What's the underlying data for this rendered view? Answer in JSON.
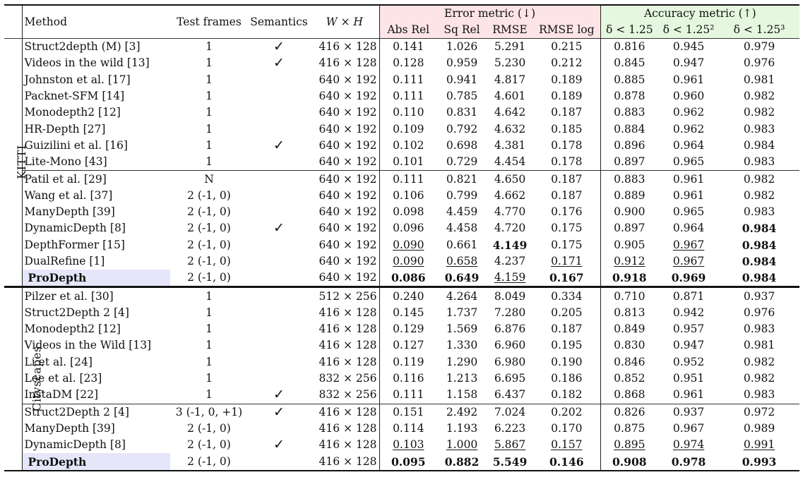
{
  "header": {
    "method": "Method",
    "test_frames": "Test frames",
    "semantics": "Semantics",
    "wh": "W × H",
    "error_group": "Error metric (↓)",
    "accuracy_group": "Accuracy metric (↑)",
    "metrics": [
      "Abs Rel",
      "Sq Rel",
      "RMSE",
      "RMSE log",
      "δ < 1.25",
      "δ < 1.25²",
      "δ < 1.25³"
    ]
  },
  "kitti_label": "KITTI",
  "cityscapes_label": "Cityscapes",
  "check": "✓",
  "kitti": [
    {
      "method": "Struct2depth (M) [3]",
      "frames": "1",
      "sem": true,
      "res": "416 × 128",
      "vals": [
        "0.141",
        "1.026",
        "5.291",
        "0.215",
        "0.816",
        "0.945",
        "0.979"
      ],
      "style": [
        "",
        "",
        "",
        "",
        "",
        "",
        ""
      ]
    },
    {
      "method": "Videos in the wild [13]",
      "frames": "1",
      "sem": true,
      "res": "416 × 128",
      "vals": [
        "0.128",
        "0.959",
        "5.230",
        "0.212",
        "0.845",
        "0.947",
        "0.976"
      ],
      "style": [
        "",
        "",
        "",
        "",
        "",
        "",
        ""
      ]
    },
    {
      "method": "Johnston et al. [17]",
      "frames": "1",
      "sem": false,
      "res": "640 × 192",
      "vals": [
        "0.111",
        "0.941",
        "4.817",
        "0.189",
        "0.885",
        "0.961",
        "0.981"
      ],
      "style": [
        "",
        "",
        "",
        "",
        "",
        "",
        ""
      ]
    },
    {
      "method": "Packnet-SFM [14]",
      "frames": "1",
      "sem": false,
      "res": "640 × 192",
      "vals": [
        "0.111",
        "0.785",
        "4.601",
        "0.189",
        "0.878",
        "0.960",
        "0.982"
      ],
      "style": [
        "",
        "",
        "",
        "",
        "",
        "",
        ""
      ]
    },
    {
      "method": "Monodepth2 [12]",
      "frames": "1",
      "sem": false,
      "res": "640 × 192",
      "vals": [
        "0.110",
        "0.831",
        "4.642",
        "0.187",
        "0.883",
        "0.962",
        "0.982"
      ],
      "style": [
        "",
        "",
        "",
        "",
        "",
        "",
        ""
      ]
    },
    {
      "method": "HR-Depth [27]",
      "frames": "1",
      "sem": false,
      "res": "640 × 192",
      "vals": [
        "0.109",
        "0.792",
        "4.632",
        "0.185",
        "0.884",
        "0.962",
        "0.983"
      ],
      "style": [
        "",
        "",
        "",
        "",
        "",
        "",
        ""
      ]
    },
    {
      "method": "Guizilini et al. [16]",
      "frames": "1",
      "sem": true,
      "res": "640 × 192",
      "vals": [
        "0.102",
        "0.698",
        "4.381",
        "0.178",
        "0.896",
        "0.964",
        "0.984"
      ],
      "style": [
        "",
        "",
        "",
        "",
        "",
        "",
        ""
      ]
    },
    {
      "method": "Lite-Mono [43]",
      "frames": "1",
      "sem": false,
      "res": "640 × 192",
      "vals": [
        "0.101",
        "0.729",
        "4.454",
        "0.178",
        "0.897",
        "0.965",
        "0.983"
      ],
      "style": [
        "",
        "",
        "",
        "",
        "",
        "",
        ""
      ]
    },
    {
      "method": "Patil et al. [29]",
      "frames": "N",
      "sem": false,
      "res": "640 × 192",
      "vals": [
        "0.111",
        "0.821",
        "4.650",
        "0.187",
        "0.883",
        "0.961",
        "0.982"
      ],
      "style": [
        "",
        "",
        "",
        "",
        "",
        "",
        ""
      ],
      "rule": "thin"
    },
    {
      "method": "Wang et al. [37]",
      "frames": "2 (-1, 0)",
      "sem": false,
      "res": "640 × 192",
      "vals": [
        "0.106",
        "0.799",
        "4.662",
        "0.187",
        "0.889",
        "0.961",
        "0.982"
      ],
      "style": [
        "",
        "",
        "",
        "",
        "",
        "",
        ""
      ]
    },
    {
      "method": "ManyDepth [39]",
      "frames": "2 (-1, 0)",
      "sem": false,
      "res": "640 × 192",
      "vals": [
        "0.098",
        "4.459",
        "4.770",
        "0.176",
        "0.900",
        "0.965",
        "0.983"
      ],
      "style": [
        "",
        "",
        "",
        "",
        "",
        "",
        ""
      ]
    },
    {
      "method": "DynamicDepth [8]",
      "frames": "2 (-1, 0)",
      "sem": true,
      "res": "640 × 192",
      "vals": [
        "0.096",
        "4.458",
        "4.720",
        "0.175",
        "0.897",
        "0.964",
        "0.984"
      ],
      "style": [
        "",
        "",
        "",
        "",
        "",
        "",
        "b"
      ]
    },
    {
      "method": "DepthFormer [15]",
      "frames": "2 (-1, 0)",
      "sem": false,
      "res": "640 × 192",
      "vals": [
        "0.090",
        "0.661",
        "4.149",
        "0.175",
        "0.905",
        "0.967",
        "0.984"
      ],
      "style": [
        "u",
        "",
        "b",
        "",
        "",
        "u",
        "b"
      ]
    },
    {
      "method": "DualRefine [1]",
      "frames": "2 (-1, 0)",
      "sem": false,
      "res": "640 × 192",
      "vals": [
        "0.090",
        "0.658",
        "4.237",
        "0.171",
        "0.912",
        "0.967",
        "0.984"
      ],
      "style": [
        "u",
        "u",
        "",
        "u",
        "u",
        "u",
        "b"
      ]
    },
    {
      "method": "ProDepth",
      "frames": "2 (-1, 0)",
      "sem": false,
      "res": "640 × 192",
      "vals": [
        "0.086",
        "0.649",
        "4.159",
        "0.167",
        "0.918",
        "0.969",
        "0.984"
      ],
      "style": [
        "b",
        "b",
        "u",
        "b",
        "b",
        "b",
        "b"
      ],
      "ours": true
    }
  ],
  "cityscapes": [
    {
      "method": "Pilzer et al. [30]",
      "frames": "1",
      "sem": false,
      "res": "512 × 256",
      "vals": [
        "0.240",
        "4.264",
        "8.049",
        "0.334",
        "0.710",
        "0.871",
        "0.937"
      ],
      "style": [
        "",
        "",
        "",
        "",
        "",
        "",
        ""
      ]
    },
    {
      "method": "Struct2Depth 2 [4]",
      "frames": "1",
      "sem": false,
      "res": "416 × 128",
      "vals": [
        "0.145",
        "1.737",
        "7.280",
        "0.205",
        "0.813",
        "0.942",
        "0.976"
      ],
      "style": [
        "",
        "",
        "",
        "",
        "",
        "",
        ""
      ]
    },
    {
      "method": "Monodepth2 [12]",
      "frames": "1",
      "sem": false,
      "res": "416 × 128",
      "vals": [
        "0.129",
        "1.569",
        "6.876",
        "0.187",
        "0.849",
        "0.957",
        "0.983"
      ],
      "style": [
        "",
        "",
        "",
        "",
        "",
        "",
        ""
      ]
    },
    {
      "method": "Videos in the Wild [13]",
      "frames": "1",
      "sem": false,
      "res": "416 × 128",
      "vals": [
        "0.127",
        "1.330",
        "6.960",
        "0.195",
        "0.830",
        "0.947",
        "0.981"
      ],
      "style": [
        "",
        "",
        "",
        "",
        "",
        "",
        ""
      ]
    },
    {
      "method": "Li et al. [24]",
      "frames": "1",
      "sem": false,
      "res": "416 × 128",
      "vals": [
        "0.119",
        "1.290",
        "6.980",
        "0.190",
        "0.846",
        "0.952",
        "0.982"
      ],
      "style": [
        "",
        "",
        "",
        "",
        "",
        "",
        ""
      ]
    },
    {
      "method": "Lee et al. [23]",
      "frames": "1",
      "sem": false,
      "res": "832 × 256",
      "vals": [
        "0.116",
        "1.213",
        "6.695",
        "0.186",
        "0.852",
        "0.951",
        "0.982"
      ],
      "style": [
        "",
        "",
        "",
        "",
        "",
        "",
        ""
      ]
    },
    {
      "method": "InstaDM [22]",
      "frames": "1",
      "sem": true,
      "res": "832 × 256",
      "vals": [
        "0.111",
        "1.158",
        "6.437",
        "0.182",
        "0.868",
        "0.961",
        "0.983"
      ],
      "style": [
        "",
        "",
        "",
        "",
        "",
        "",
        ""
      ]
    },
    {
      "method": "Struct2Depth 2 [4]",
      "frames": "3 (-1, 0, +1)",
      "sem": true,
      "res": "416 × 128",
      "vals": [
        "0.151",
        "2.492",
        "7.024",
        "0.202",
        "0.826",
        "0.937",
        "0.972"
      ],
      "style": [
        "",
        "",
        "",
        "",
        "",
        "",
        ""
      ],
      "rule": "thin"
    },
    {
      "method": "ManyDepth [39]",
      "frames": "2 (-1, 0)",
      "sem": false,
      "res": "416 × 128",
      "vals": [
        "0.114",
        "1.193",
        "6.223",
        "0.170",
        "0.875",
        "0.967",
        "0.989"
      ],
      "style": [
        "",
        "",
        "",
        "",
        "",
        "",
        ""
      ]
    },
    {
      "method": "DynamicDepth [8]",
      "frames": "2 (-1, 0)",
      "sem": true,
      "res": "416 × 128",
      "vals": [
        "0.103",
        "1.000",
        "5.867",
        "0.157",
        "0.895",
        "0.974",
        "0.991"
      ],
      "style": [
        "u",
        "u",
        "u",
        "u",
        "u",
        "u",
        "u"
      ]
    },
    {
      "method": "ProDepth",
      "frames": "2 (-1, 0)",
      "sem": false,
      "res": "416 × 128",
      "vals": [
        "0.095",
        "0.882",
        "5.549",
        "0.146",
        "0.908",
        "0.978",
        "0.993"
      ],
      "style": [
        "b",
        "b",
        "b",
        "b",
        "b",
        "b",
        "b"
      ],
      "ours": true
    }
  ]
}
